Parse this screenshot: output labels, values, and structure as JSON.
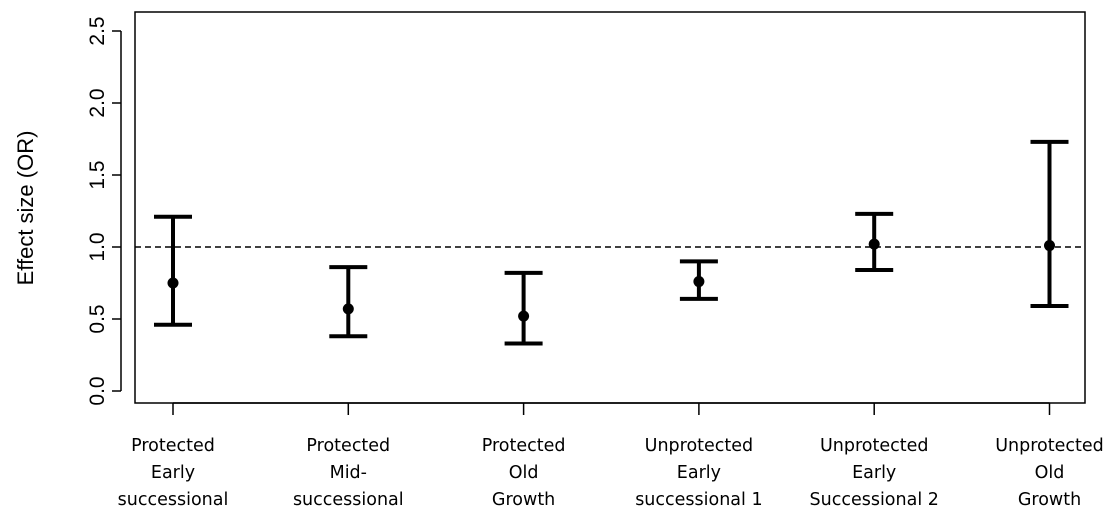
{
  "chart_data": {
    "type": "scatter",
    "title": "",
    "xlabel": "",
    "ylabel": "Effect size (OR)",
    "ylim": [
      0.0,
      2.5
    ],
    "yticks": [
      "0.0",
      "0.5",
      "1.0",
      "1.5",
      "2.0",
      "2.5"
    ],
    "grid": false,
    "legend": "none",
    "reference_line": {
      "y": 1.0,
      "style": "dashed"
    },
    "categories": [
      [
        "Protected",
        "Early",
        "successional"
      ],
      [
        "Protected",
        "Mid-",
        "successional"
      ],
      [
        "Protected",
        "Old",
        "Growth"
      ],
      [
        "Unprotected",
        "Early",
        "successional 1"
      ],
      [
        "Unprotected",
        "Early",
        "Successional 2"
      ],
      [
        "Unprotected",
        "Old",
        "Growth"
      ]
    ],
    "series": [
      {
        "estimate": [
          0.75,
          0.57,
          0.52,
          0.76,
          1.02,
          1.01
        ],
        "lower": [
          0.46,
          0.38,
          0.33,
          0.64,
          0.84,
          0.59
        ],
        "upper": [
          1.21,
          0.86,
          0.82,
          0.9,
          1.23,
          1.73
        ]
      }
    ],
    "color": "#000000"
  }
}
